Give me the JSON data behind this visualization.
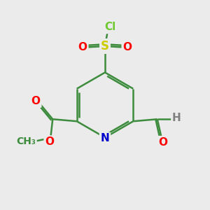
{
  "background_color": "#ebebeb",
  "atom_colors": {
    "C": "#3d8c3d",
    "N": "#0000cc",
    "O": "#ff0000",
    "S": "#cccc00",
    "Cl": "#70c830",
    "H": "#808080"
  },
  "bond_color": "#3d8c3d",
  "bond_width": 1.8,
  "font_size": 11
}
